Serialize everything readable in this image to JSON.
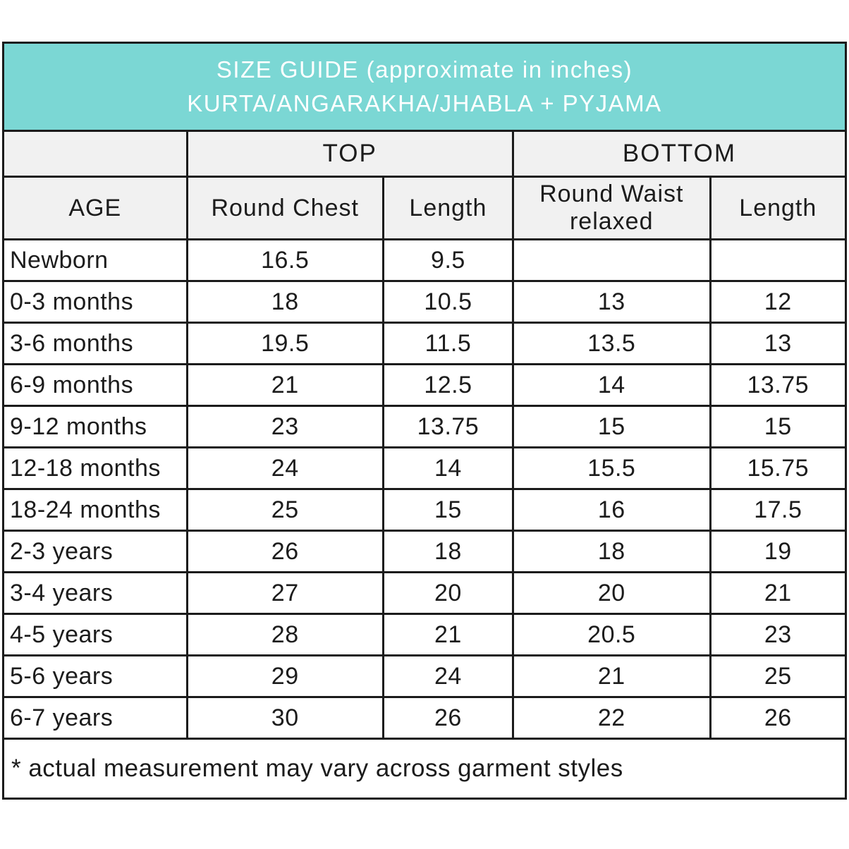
{
  "title": {
    "line1": "SIZE GUIDE (approximate in inches)",
    "line2": "KURTA/ANGARAKHA/JHABLA + PYJAMA"
  },
  "group_headers": {
    "top": "TOP",
    "bottom": "BOTTOM"
  },
  "column_headers": {
    "age": "AGE",
    "round_chest": "Round Chest",
    "top_length": "Length",
    "round_waist": "Round Waist relaxed",
    "bottom_length": "Length"
  },
  "rows": [
    {
      "age": "Newborn",
      "values": [
        "16.5",
        "9.5",
        "",
        ""
      ]
    },
    {
      "age": "0-3 months",
      "values": [
        "18",
        "10.5",
        "13",
        "12"
      ]
    },
    {
      "age": "3-6 months",
      "values": [
        "19.5",
        "11.5",
        "13.5",
        "13"
      ]
    },
    {
      "age": "6-9 months",
      "values": [
        "21",
        "12.5",
        "14",
        "13.75"
      ]
    },
    {
      "age": "9-12 months",
      "values": [
        "23",
        "13.75",
        "15",
        "15"
      ]
    },
    {
      "age": "12-18 months",
      "values": [
        "24",
        "14",
        "15.5",
        "15.75"
      ]
    },
    {
      "age": "18-24 months",
      "values": [
        "25",
        "15",
        "16",
        "17.5"
      ]
    },
    {
      "age": "2-3 years",
      "values": [
        "26",
        "18",
        "18",
        "19"
      ]
    },
    {
      "age": "3-4 years",
      "values": [
        "27",
        "20",
        "20",
        "21"
      ]
    },
    {
      "age": "4-5 years",
      "values": [
        "28",
        "21",
        "20.5",
        "23"
      ]
    },
    {
      "age": "5-6 years",
      "values": [
        "29",
        "24",
        "21",
        "25"
      ]
    },
    {
      "age": "6-7 years",
      "values": [
        "30",
        "26",
        "22",
        "26"
      ]
    }
  ],
  "footnote": "* actual measurement may vary across garment styles",
  "colors": {
    "header_bg": "#7BD7D4",
    "header_text": "#FFFFFF",
    "subheader_bg": "#F1F1F1",
    "border": "#1B1B1B",
    "body_bg": "#FFFFFF",
    "text": "#1C1C1C"
  },
  "chart_data": {
    "type": "table",
    "title": "SIZE GUIDE (approximate in inches) KURTA/ANGARAKHA/JHABLA + PYJAMA",
    "units": "inches",
    "column_groups": [
      "",
      "TOP",
      "TOP",
      "BOTTOM",
      "BOTTOM"
    ],
    "columns": [
      "AGE",
      "Round Chest",
      "Length",
      "Round Waist relaxed",
      "Length"
    ],
    "rows": [
      [
        "Newborn",
        16.5,
        9.5,
        null,
        null
      ],
      [
        "0-3 months",
        18,
        10.5,
        13,
        12
      ],
      [
        "3-6 months",
        19.5,
        11.5,
        13.5,
        13
      ],
      [
        "6-9 months",
        21,
        12.5,
        14,
        13.75
      ],
      [
        "9-12 months",
        23,
        13.75,
        15,
        15
      ],
      [
        "12-18 months",
        24,
        14,
        15.5,
        15.75
      ],
      [
        "18-24 months",
        25,
        15,
        16,
        17.5
      ],
      [
        "2-3 years",
        26,
        18,
        18,
        19
      ],
      [
        "3-4 years",
        27,
        20,
        20,
        21
      ],
      [
        "4-5 years",
        28,
        21,
        20.5,
        23
      ],
      [
        "5-6 years",
        29,
        24,
        21,
        25
      ],
      [
        "6-7 years",
        30,
        26,
        22,
        26
      ]
    ],
    "footnote": "* actual measurement may vary across garment styles"
  }
}
